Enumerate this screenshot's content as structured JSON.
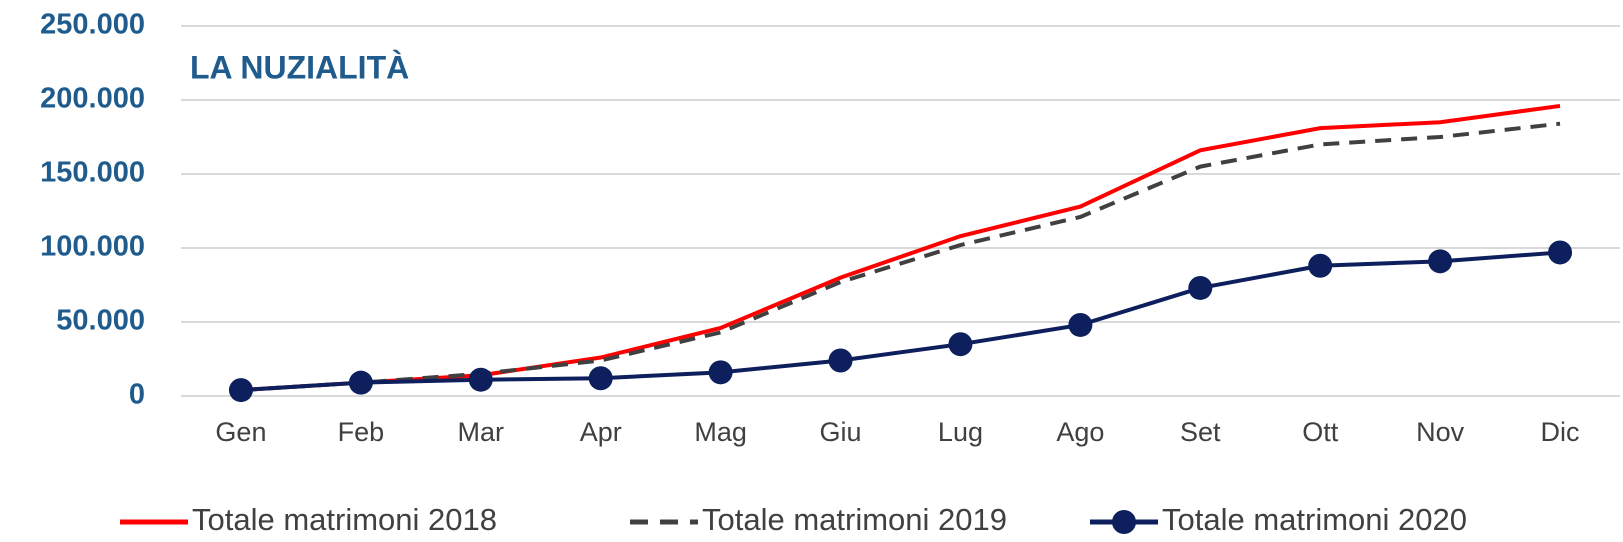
{
  "chart_data": {
    "type": "line",
    "title": "LA NUZIALITÀ",
    "categories": [
      "Gen",
      "Feb",
      "Mar",
      "Apr",
      "Mag",
      "Giu",
      "Lug",
      "Ago",
      "Set",
      "Ott",
      "Nov",
      "Dic"
    ],
    "series": [
      {
        "name": "Totale matrimoni 2018",
        "color": "#ff0000",
        "dash": false,
        "markers": false,
        "values": [
          4000,
          9000,
          14000,
          26000,
          46000,
          80000,
          108000,
          128000,
          166000,
          181000,
          185000,
          196000
        ]
      },
      {
        "name": "Totale matrimoni 2019",
        "color": "#404040",
        "dash": true,
        "markers": false,
        "values": [
          4000,
          9000,
          15000,
          24000,
          43000,
          77000,
          102000,
          121000,
          155000,
          170000,
          175000,
          184000
        ]
      },
      {
        "name": "Totale matrimoni 2020",
        "color": "#0d1f5c",
        "dash": false,
        "markers": true,
        "values": [
          4000,
          9000,
          11000,
          12000,
          16000,
          24000,
          35000,
          48000,
          73000,
          88000,
          91000,
          97000
        ]
      }
    ],
    "ylim": [
      0,
      250000
    ],
    "yticks": [
      0,
      {
        "value": 50000,
        "label": "50.000"
      },
      {
        "value": 100000,
        "label": "100.000"
      },
      {
        "value": 150000,
        "label": "150.000"
      },
      {
        "value": 200000,
        "label": "200.000"
      },
      {
        "value": 250000,
        "label": "250.000"
      }
    ],
    "grid": true,
    "legend": "bottom"
  }
}
